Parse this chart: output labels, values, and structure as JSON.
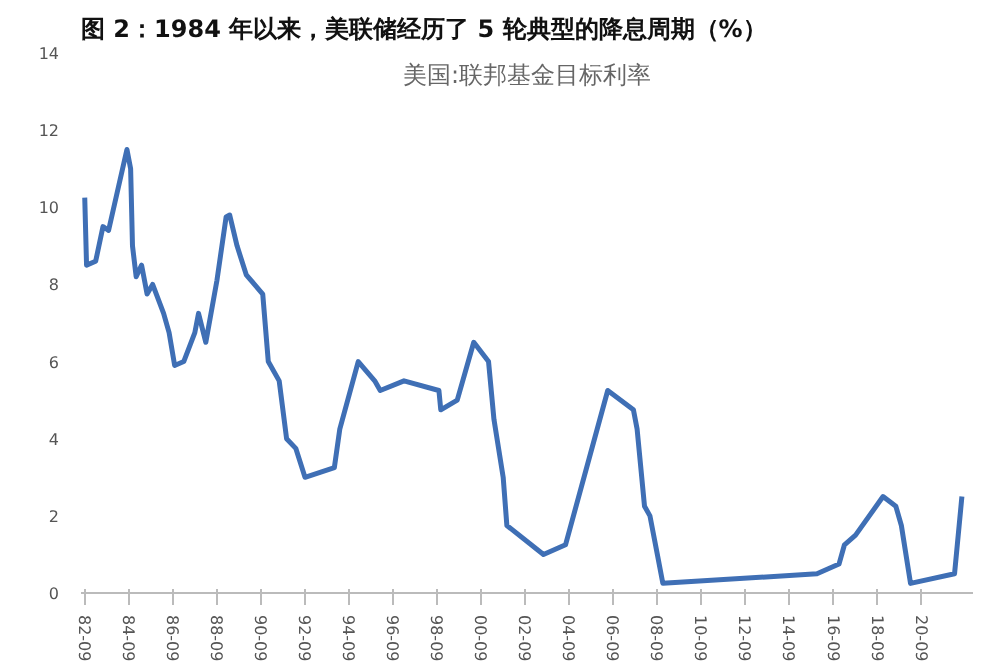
{
  "chart_data": {
    "type": "line",
    "title": "图 2：1984 年以来，美联储经历了 5 轮典型的降息周期（%）",
    "subtitle": "美国:联邦基金目标利率",
    "x": [
      "1982-09",
      "1982-10",
      "1983-03",
      "1983-07",
      "1983-10",
      "1984-08",
      "1984-10",
      "1984-11",
      "1985-01",
      "1985-04",
      "1985-07",
      "1985-10",
      "1986-04",
      "1986-07",
      "1986-10",
      "1987-03",
      "1987-09",
      "1987-11",
      "1988-03",
      "1988-09",
      "1989-02",
      "1989-04",
      "1989-08",
      "1990-01",
      "1990-10",
      "1991-01",
      "1991-07",
      "1991-11",
      "1992-04",
      "1992-09",
      "1994-01",
      "1994-04",
      "1995-02",
      "1995-11",
      "1996-02",
      "1997-03",
      "1998-10",
      "1998-11",
      "1999-08",
      "2000-05",
      "2001-01",
      "2001-04",
      "2001-09",
      "2001-11",
      "2003-07",
      "2004-07",
      "2006-06",
      "2007-08",
      "2007-10",
      "2008-02",
      "2008-05",
      "2008-09",
      "2008-12",
      "2015-12",
      "2016-12",
      "2017-03",
      "2017-09",
      "2018-12",
      "2019-07",
      "2019-10",
      "2020-03",
      "2022-03",
      "2022-07"
    ],
    "series": [
      {
        "color": "#3f6fb5",
        "values": [
          10.25,
          8.5,
          8.6,
          9.5,
          9.4,
          11.5,
          11.0,
          9.0,
          8.2,
          8.5,
          7.75,
          8.0,
          7.25,
          6.75,
          5.9,
          6.0,
          6.75,
          7.25,
          6.5,
          8.1,
          9.75,
          9.8,
          9.0,
          8.25,
          7.75,
          6.0,
          5.5,
          4.0,
          3.75,
          3.0,
          3.25,
          4.25,
          6.0,
          5.5,
          5.25,
          5.5,
          5.25,
          4.75,
          5.0,
          6.5,
          6.0,
          4.5,
          3.0,
          1.75,
          1.0,
          1.25,
          5.25,
          4.75,
          4.25,
          2.25,
          2.0,
          1.0,
          0.25,
          0.5,
          0.75,
          1.25,
          1.5,
          2.5,
          2.25,
          1.75,
          0.25,
          0.5,
          2.5
        ]
      }
    ],
    "xlim": [
      "1982-07",
      "2023-01"
    ],
    "xticks": [
      {
        "value": "1982-09",
        "label": "82-09"
      },
      {
        "value": "1984-09",
        "label": "84-09"
      },
      {
        "value": "1986-09",
        "label": "86-09"
      },
      {
        "value": "1988-09",
        "label": "88-09"
      },
      {
        "value": "1990-09",
        "label": "90-09"
      },
      {
        "value": "1992-09",
        "label": "92-09"
      },
      {
        "value": "1994-09",
        "label": "94-09"
      },
      {
        "value": "1996-09",
        "label": "96-09"
      },
      {
        "value": "1998-09",
        "label": "98-09"
      },
      {
        "value": "2000-09",
        "label": "00-09"
      },
      {
        "value": "2002-09",
        "label": "02-09"
      },
      {
        "value": "2004-09",
        "label": "04-09"
      },
      {
        "value": "2006-09",
        "label": "06-09"
      },
      {
        "value": "2008-09",
        "label": "08-09"
      },
      {
        "value": "2010-09",
        "label": "10-09"
      },
      {
        "value": "2012-09",
        "label": "12-09"
      },
      {
        "value": "2014-09",
        "label": "14-09"
      },
      {
        "value": "2016-09",
        "label": "16-09"
      },
      {
        "value": "2018-09",
        "label": "18-09"
      },
      {
        "value": "2020-09",
        "label": "20-09"
      }
    ],
    "ylim": [
      0,
      14
    ],
    "yticks": [
      0,
      2,
      4,
      6,
      8,
      10,
      12,
      14
    ],
    "grid": false,
    "marker": "none",
    "line_style": "solid"
  }
}
